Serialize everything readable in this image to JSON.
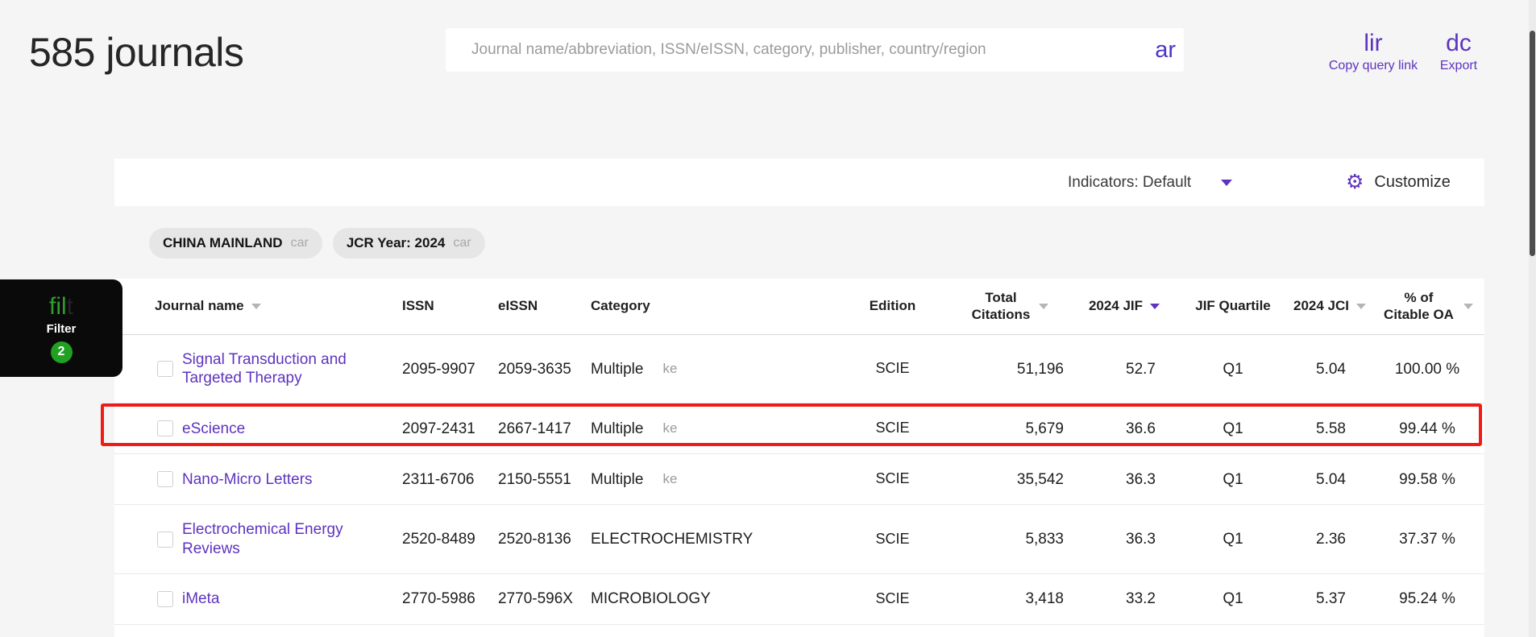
{
  "header": {
    "title": "585 journals",
    "search": {
      "placeholder": "Journal name/abbreviation, ISSN/eISSN, category, publisher, country/region",
      "icon_text": "ar"
    },
    "copy_query_link": {
      "icon_text": "lir",
      "label": "Copy query link"
    },
    "export": {
      "icon_text": "dc",
      "label": "Export"
    }
  },
  "toolbar": {
    "indicators": "Indicators: Default",
    "gear_icon": "⚙",
    "customize": "Customize"
  },
  "filter_chips": [
    {
      "label": "CHINA MAINLAND",
      "close_icon_text": "car"
    },
    {
      "label": "JCR Year: 2024",
      "close_icon_text": "car"
    }
  ],
  "filter_fab": {
    "icon_text": "fil",
    "icon_text_clipped": "t",
    "label": "Filter",
    "count": "2"
  },
  "table": {
    "columns": [
      {
        "label": "Journal name",
        "sort": "gray"
      },
      {
        "label": "ISSN",
        "sort": "none"
      },
      {
        "label": "eISSN",
        "sort": "none"
      },
      {
        "label": "Category",
        "sort": "none"
      },
      {
        "label": "Edition",
        "sort": "none"
      },
      {
        "label": "Total Citations",
        "sort": "gray"
      },
      {
        "label": "2024 JIF",
        "sort": "purple"
      },
      {
        "label": "JIF Quartile",
        "sort": "none"
      },
      {
        "label": "2024 JCI",
        "sort": "gray"
      },
      {
        "label": "% of Citable OA",
        "sort": "gray"
      }
    ],
    "rows": [
      {
        "journal": "Signal Transduction and Targeted Therapy",
        "issn": "2095-9907",
        "eissn": "2059-3635",
        "category": "Multiple",
        "category_icon_text": "ke",
        "edition": "SCIE",
        "total_citations": "51,196",
        "jif_2024": "52.7",
        "jif_quartile": "Q1",
        "jci_2024": "5.04",
        "citable_oa": "100.00 %",
        "highlighted": false
      },
      {
        "journal": "eScience",
        "issn": "2097-2431",
        "eissn": "2667-1417",
        "category": "Multiple",
        "category_icon_text": "ke",
        "edition": "SCIE",
        "total_citations": "5,679",
        "jif_2024": "36.6",
        "jif_quartile": "Q1",
        "jci_2024": "5.58",
        "citable_oa": "99.44 %",
        "highlighted": true
      },
      {
        "journal": "Nano-Micro Letters",
        "issn": "2311-6706",
        "eissn": "2150-5551",
        "category": "Multiple",
        "category_icon_text": "ke",
        "edition": "SCIE",
        "total_citations": "35,542",
        "jif_2024": "36.3",
        "jif_quartile": "Q1",
        "jci_2024": "5.04",
        "citable_oa": "99.58 %",
        "highlighted": false
      },
      {
        "journal": "Electrochemical Energy Reviews",
        "issn": "2520-8489",
        "eissn": "2520-8136",
        "category": "ELECTROCHEMISTRY",
        "category_icon_text": "",
        "edition": "SCIE",
        "total_citations": "5,833",
        "jif_2024": "36.3",
        "jif_quartile": "Q1",
        "jci_2024": "2.36",
        "citable_oa": "37.37 %",
        "highlighted": false
      },
      {
        "journal": "iMeta",
        "issn": "2770-5986",
        "eissn": "2770-596X",
        "category": "MICROBIOLOGY",
        "category_icon_text": "",
        "edition": "SCIE",
        "total_citations": "3,418",
        "jif_2024": "33.2",
        "jif_quartile": "Q1",
        "jci_2024": "5.37",
        "citable_oa": "95.24 %",
        "highlighted": false
      }
    ]
  },
  "colors": {
    "accent_purple": "#5e33bf",
    "highlight_red": "#ee1c16",
    "badge_green": "#21a121",
    "fab_icon_green": "#2f9e2f",
    "page_background": "#f5f5f5"
  }
}
